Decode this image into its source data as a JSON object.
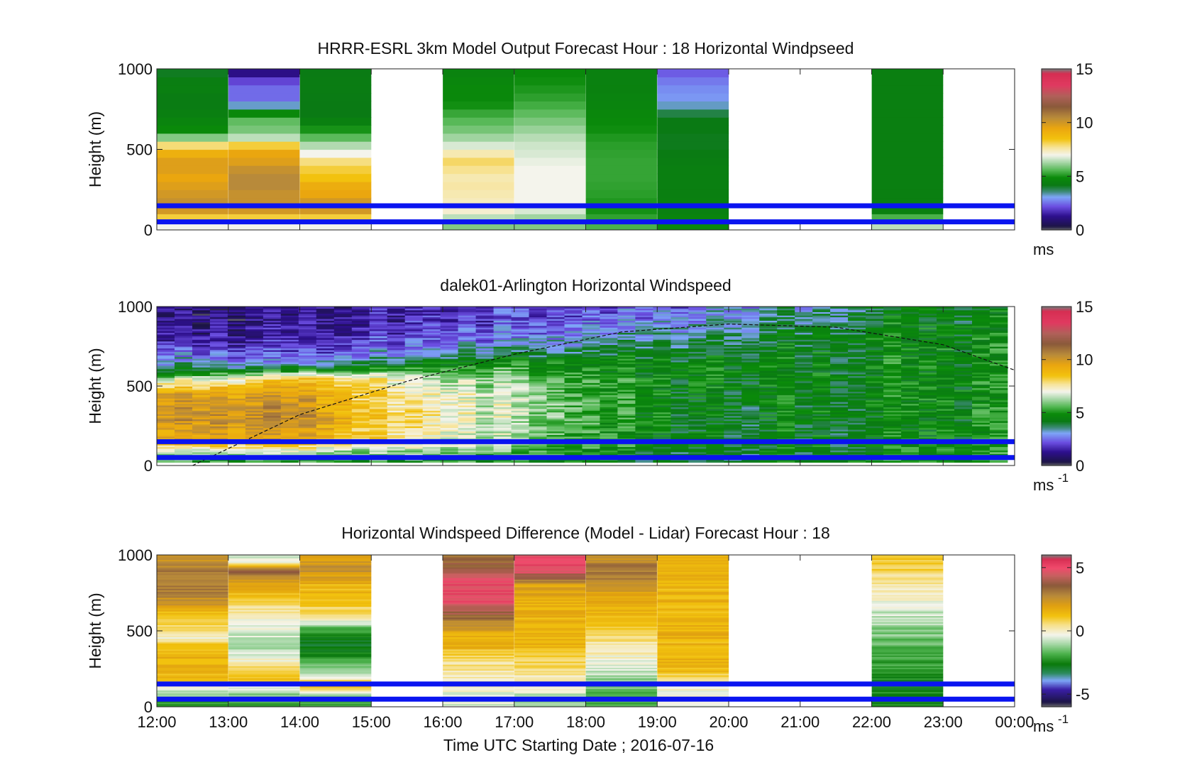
{
  "colors": {
    "gap": "#ffffff",
    "pbl_lines": "#0a14f0",
    "axes": "#222222"
  },
  "figure": {
    "xlabel": "Time UTC  Starting Date ; 2016-07-16",
    "xticks": [
      "12:00",
      "13:00",
      "14:00",
      "15:00",
      "16:00",
      "17:00",
      "18:00",
      "19:00",
      "20:00",
      "21:00",
      "22:00",
      "23:00",
      "00:00"
    ]
  },
  "chart_data": [
    {
      "type": "heatmap",
      "title": "HRRR-ESRL 3km Model Output   Forecast Hour : 18 Horizontal Windpseed",
      "ylabel": "Height (m)",
      "yticks": [
        "0",
        "500",
        "1000"
      ],
      "ylim": [
        0,
        1000
      ],
      "xlim_hours": [
        12,
        24
      ],
      "colorbar": {
        "ticks": [
          "0",
          "5",
          "10",
          "15"
        ],
        "tick_values": [
          0,
          5,
          10,
          15
        ],
        "range": [
          0,
          15
        ],
        "unit": "ms",
        "unit_sup": "",
        "colormap": "windspeed"
      },
      "blue_lines_m": [
        150,
        50
      ],
      "columns": [
        {
          "time_start": 12,
          "time_end": 13,
          "heights": [
            50,
            100,
            150,
            200,
            250,
            300,
            350,
            400,
            450,
            500,
            550,
            600,
            700,
            800,
            900,
            1000
          ],
          "values": [
            7,
            9.5,
            10.5,
            10,
            10,
            9.5,
            9.5,
            10,
            9.5,
            8.8,
            7,
            5,
            4.5,
            4.2,
            4.5,
            4
          ]
        },
        {
          "time_start": 13,
          "time_end": 14,
          "heights": [
            50,
            100,
            150,
            200,
            250,
            300,
            350,
            400,
            450,
            500,
            550,
            600,
            700,
            800,
            900,
            1000
          ],
          "values": [
            7,
            9.5,
            10.5,
            10,
            10.5,
            10.5,
            10.5,
            10,
            9.5,
            9.5,
            7,
            6,
            5.6,
            2.5,
            2.5,
            0.8
          ]
        },
        {
          "time_start": 14,
          "time_end": 15,
          "heights": [
            50,
            100,
            150,
            200,
            250,
            300,
            350,
            400,
            450,
            500,
            550,
            600,
            700,
            800,
            900,
            1000
          ],
          "values": [
            7,
            9.5,
            10.5,
            9.5,
            9.5,
            9,
            8,
            8.5,
            7.2,
            6.8,
            6,
            5.3,
            4.2,
            4.2,
            4.3,
            4.2
          ]
        },
        {
          "time_start": 16,
          "time_end": 17,
          "heights": [
            50,
            100,
            150,
            200,
            250,
            300,
            350,
            400,
            450,
            500,
            550,
            600,
            700,
            800,
            900,
            1000
          ],
          "values": [
            6,
            7,
            7.5,
            7.3,
            7.7,
            7.5,
            7.5,
            8,
            8,
            7,
            6.5,
            6,
            5.5,
            4.8,
            4.8,
            4.5
          ]
        },
        {
          "time_start": 17,
          "time_end": 18,
          "heights": [
            50,
            100,
            150,
            200,
            250,
            300,
            350,
            400,
            450,
            500,
            550,
            600,
            700,
            800,
            900,
            1000
          ],
          "values": [
            6,
            6.5,
            7,
            7,
            7,
            7,
            7,
            7,
            6.8,
            6.7,
            6.6,
            6.3,
            5.8,
            5.3,
            5,
            4.8
          ]
        },
        {
          "time_start": 18,
          "time_end": 19,
          "heights": [
            50,
            100,
            150,
            200,
            250,
            300,
            350,
            400,
            450,
            500,
            550,
            600,
            700,
            800,
            900,
            1000
          ],
          "values": [
            5.5,
            5,
            5,
            5.2,
            5.2,
            5.3,
            5.3,
            5.3,
            5.3,
            5.2,
            5.2,
            5,
            4.8,
            4.6,
            4.5,
            4.5
          ]
        },
        {
          "time_start": 19,
          "time_end": 20,
          "heights": [
            50,
            100,
            150,
            200,
            250,
            300,
            350,
            400,
            450,
            500,
            550,
            600,
            700,
            800,
            900,
            1000
          ],
          "values": [
            4.8,
            4.5,
            4.5,
            4.4,
            4.4,
            4.4,
            4.4,
            4.4,
            4.3,
            4.2,
            4.1,
            4.2,
            4.2,
            3,
            2.8,
            2.2
          ]
        },
        {
          "time_start": 22,
          "time_end": 23,
          "heights": [
            50,
            100,
            150,
            200,
            250,
            300,
            350,
            400,
            450,
            500,
            550,
            600,
            700,
            800,
            900,
            1000
          ],
          "values": [
            6.5,
            4.5,
            4.4,
            4.4,
            4.4,
            4.4,
            4.4,
            4.4,
            4.4,
            4.4,
            4.4,
            4.4,
            4.4,
            4.4,
            4.4,
            4.4
          ]
        }
      ]
    },
    {
      "type": "heatmap",
      "title": "dalek01-Arlington  Horizontal Windspeed",
      "ylabel": "Height (m)",
      "yticks": [
        "0",
        "500",
        "1000"
      ],
      "ylim": [
        0,
        1000
      ],
      "xlim_hours": [
        12,
        24
      ],
      "colorbar": {
        "ticks": [
          "0",
          "5",
          "10",
          "15"
        ],
        "tick_values": [
          0,
          5,
          10,
          15
        ],
        "range": [
          0,
          15
        ],
        "unit": "ms",
        "unit_sup": "-1",
        "colormap": "windspeed"
      },
      "blue_lines_m": [
        150,
        50
      ],
      "data_time_range": [
        12,
        23.9
      ],
      "data_height_range": [
        20,
        1000
      ],
      "boundary_layer_curve": {
        "t": [
          12.5,
          14,
          15.5,
          17,
          18.5,
          20,
          21.5,
          23,
          24
        ],
        "h": [
          0,
          320,
          530,
          700,
          840,
          890,
          870,
          760,
          600
        ]
      },
      "profiles": [
        {
          "time": 12,
          "heights": [
            20,
            100,
            150,
            300,
            450,
            550,
            600,
            650,
            700,
            800,
            900,
            1000
          ],
          "values": [
            5,
            7,
            9,
            10,
            9.5,
            6,
            4,
            3,
            2.5,
            1.2,
            1,
            0.8
          ]
        },
        {
          "time": 13,
          "heights": [
            20,
            100,
            150,
            300,
            450,
            550,
            600,
            650,
            700,
            800,
            900,
            1000
          ],
          "values": [
            5,
            7,
            9.5,
            10.2,
            9.8,
            7,
            4.5,
            3,
            2.5,
            1.5,
            1.2,
            1
          ]
        },
        {
          "time": 14,
          "heights": [
            20,
            100,
            150,
            300,
            450,
            550,
            600,
            650,
            700,
            800,
            900,
            1000
          ],
          "values": [
            5,
            7,
            9.5,
            10.5,
            10,
            8.5,
            5,
            3,
            2.2,
            1.6,
            1.3,
            1.2
          ]
        },
        {
          "time": 15,
          "heights": [
            20,
            100,
            150,
            300,
            450,
            550,
            600,
            650,
            700,
            800,
            900,
            1000
          ],
          "values": [
            5,
            6.5,
            8,
            8.5,
            8,
            7.5,
            5,
            4,
            2.8,
            2,
            1.6,
            1.5
          ]
        },
        {
          "time": 16,
          "heights": [
            20,
            100,
            150,
            300,
            450,
            550,
            600,
            650,
            700,
            800,
            900,
            1000
          ],
          "values": [
            5,
            6.5,
            7,
            7.5,
            7.2,
            6.5,
            5.5,
            4.5,
            3.5,
            2.5,
            2,
            1.8
          ]
        },
        {
          "time": 17,
          "heights": [
            20,
            100,
            150,
            300,
            450,
            550,
            600,
            650,
            700,
            800,
            900,
            1000
          ],
          "values": [
            5,
            5.5,
            6,
            6.5,
            6.5,
            6,
            5.5,
            4.8,
            3.8,
            2.8,
            2.2,
            2
          ]
        },
        {
          "time": 18,
          "heights": [
            20,
            100,
            150,
            300,
            450,
            550,
            600,
            650,
            700,
            800,
            900,
            1000
          ],
          "values": [
            4.8,
            5,
            5.5,
            5.5,
            5.5,
            5.2,
            5,
            4.8,
            4.2,
            3,
            2.5,
            2
          ]
        },
        {
          "time": 19,
          "heights": [
            20,
            100,
            150,
            300,
            450,
            550,
            600,
            650,
            700,
            800,
            900,
            1000
          ],
          "values": [
            4.2,
            4.5,
            4.5,
            4.6,
            4.6,
            4.8,
            4.7,
            4.5,
            4.3,
            3.6,
            3,
            2.4
          ]
        },
        {
          "time": 20,
          "heights": [
            20,
            100,
            150,
            300,
            450,
            550,
            600,
            650,
            700,
            800,
            900,
            1000
          ],
          "values": [
            4.2,
            4.3,
            4.4,
            4.4,
            4.5,
            4.6,
            4.6,
            4.5,
            4.4,
            3.8,
            3.3,
            3
          ]
        },
        {
          "time": 21,
          "heights": [
            20,
            100,
            150,
            300,
            450,
            550,
            600,
            650,
            700,
            800,
            900,
            1000
          ],
          "values": [
            4.2,
            4.4,
            4.4,
            4.4,
            4.4,
            4.5,
            4.5,
            4.5,
            4.4,
            4.2,
            3.8,
            3.4
          ]
        },
        {
          "time": 22,
          "heights": [
            20,
            100,
            150,
            300,
            450,
            550,
            600,
            650,
            700,
            800,
            900,
            1000
          ],
          "values": [
            5,
            4.5,
            4.5,
            4.5,
            4.5,
            4.6,
            4.6,
            4.5,
            4.5,
            4.6,
            4.4,
            4
          ]
        },
        {
          "time": 23,
          "heights": [
            20,
            100,
            150,
            300,
            450,
            550,
            600,
            650,
            700,
            800,
            900,
            1000
          ],
          "values": [
            5,
            5,
            4.8,
            4.8,
            4.8,
            4.8,
            4.8,
            4.8,
            4.8,
            4.8,
            4.6,
            4.3
          ]
        },
        {
          "time": 24,
          "heights": [
            20,
            100,
            150,
            300,
            450,
            550,
            600,
            650,
            700,
            800,
            900,
            1000
          ],
          "values": [
            5,
            5,
            4.8,
            4.8,
            4.8,
            4.8,
            4.8,
            4.8,
            4.8,
            4.8,
            4.6,
            4.3
          ]
        }
      ]
    },
    {
      "type": "heatmap",
      "title": "Horizontal Windspeed Difference (Model - Lidar) Forecast Hour : 18",
      "ylabel": "Height (m)",
      "yticks": [
        "0",
        "500",
        "1000"
      ],
      "ylim": [
        0,
        1000
      ],
      "xlim_hours": [
        12,
        24
      ],
      "colorbar": {
        "ticks": [
          "5",
          "0",
          "-5"
        ],
        "tick_values": [
          5,
          0,
          -5
        ],
        "range": [
          -6,
          6
        ],
        "unit": "ms",
        "unit_sup": "-1",
        "colormap": "difference"
      },
      "blue_lines_m": [
        150,
        50
      ],
      "columns": [
        {
          "time_start": 12,
          "time_end": 13,
          "heights": [
            50,
            200,
            300,
            400,
            450,
            500,
            600,
            700,
            800,
            900,
            1000
          ],
          "values": [
            -2,
            1.5,
            1.5,
            1.5,
            0,
            0.5,
            1.2,
            2.5,
            3,
            3,
            2.2
          ]
        },
        {
          "time_start": 13,
          "time_end": 14,
          "heights": [
            50,
            200,
            300,
            400,
            500,
            600,
            700,
            800,
            900,
            950,
            1000
          ],
          "values": [
            -2,
            1.5,
            0,
            -1,
            -0.5,
            0,
            1,
            2,
            3.5,
            0,
            -1
          ]
        },
        {
          "time_start": 14,
          "time_end": 15,
          "heights": [
            50,
            150,
            200,
            300,
            400,
            500,
            600,
            700,
            800,
            900,
            1000
          ],
          "values": [
            -2,
            1.5,
            -0.5,
            -2,
            -3,
            -2,
            0.5,
            1.2,
            1.5,
            2.5,
            2.2
          ]
        },
        {
          "time_start": 16,
          "time_end": 17,
          "heights": [
            50,
            150,
            300,
            400,
            450,
            500,
            600,
            700,
            800,
            900,
            1000
          ],
          "values": [
            -0.5,
            0,
            0.5,
            1.5,
            1.5,
            2,
            3.5,
            5,
            5,
            4,
            3
          ]
        },
        {
          "time_start": 17,
          "time_end": 18,
          "heights": [
            50,
            150,
            300,
            400,
            500,
            600,
            700,
            800,
            900,
            950,
            1000
          ],
          "values": [
            -1,
            0,
            0.8,
            1.5,
            1.5,
            1.5,
            1.8,
            2,
            5,
            5,
            5
          ]
        },
        {
          "time_start": 18,
          "time_end": 19,
          "heights": [
            50,
            150,
            250,
            350,
            450,
            550,
            650,
            750,
            850,
            950,
            1000
          ],
          "values": [
            -2,
            -1.5,
            -0.5,
            0,
            0.5,
            1,
            1.5,
            2,
            3,
            3,
            2
          ]
        },
        {
          "time_start": 19,
          "time_end": 20,
          "heights": [
            50,
            150,
            250,
            350,
            450,
            550,
            650,
            750,
            850,
            950,
            1000
          ],
          "values": [
            -0.5,
            0,
            1.5,
            1.5,
            1.5,
            1.5,
            1.5,
            1.5,
            1.5,
            1.5,
            1.5
          ]
        },
        {
          "time_start": 22,
          "time_end": 23,
          "heights": [
            50,
            150,
            250,
            350,
            450,
            550,
            650,
            750,
            850,
            950,
            1000
          ],
          "values": [
            -2.5,
            -2.5,
            -2,
            -2,
            -1.5,
            -1,
            -0.5,
            0,
            0.5,
            1,
            1
          ]
        }
      ]
    }
  ]
}
